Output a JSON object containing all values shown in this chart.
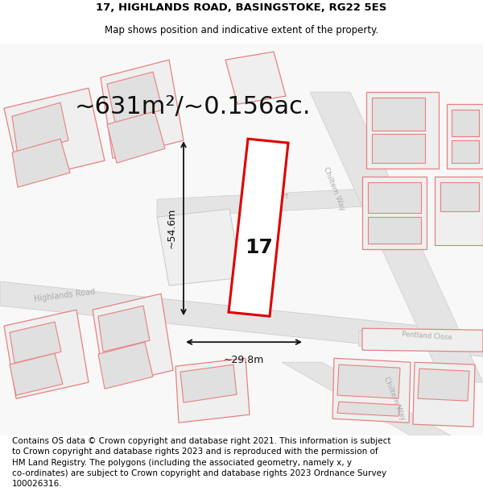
{
  "title_line1": "17, HIGHLANDS ROAD, BASINGSTOKE, RG22 5ES",
  "title_line2": "Map shows position and indicative extent of the property.",
  "area_text": "~631m²/~0.156ac.",
  "width_label": "~29.8m",
  "height_label": "~54.6m",
  "property_number": "17",
  "footer_text": "Contains OS data © Crown copyright and database right 2021. This information is subject to Crown copyright and database rights 2023 and is reproduced with the permission of HM Land Registry. The polygons (including the associated geometry, namely x, y co-ordinates) are subject to Crown copyright and database rights 2023 Ordnance Survey 100026316.",
  "bg_color": "#ffffff",
  "road_fill": "#e8e8e8",
  "building_outline_fill": "#efefef",
  "building_inner_fill": "#e0e0e0",
  "red_color": "#dd0000",
  "pink_color": "#e88080",
  "gray_text": "#999999",
  "dark_gray_text": "#888888",
  "title_fontsize": 9.5,
  "subtitle_fontsize": 8.5,
  "area_fontsize": 22,
  "label_fontsize": 9,
  "footer_fontsize": 7.5,
  "number_fontsize": 18,
  "road_label_fontsize": 7
}
